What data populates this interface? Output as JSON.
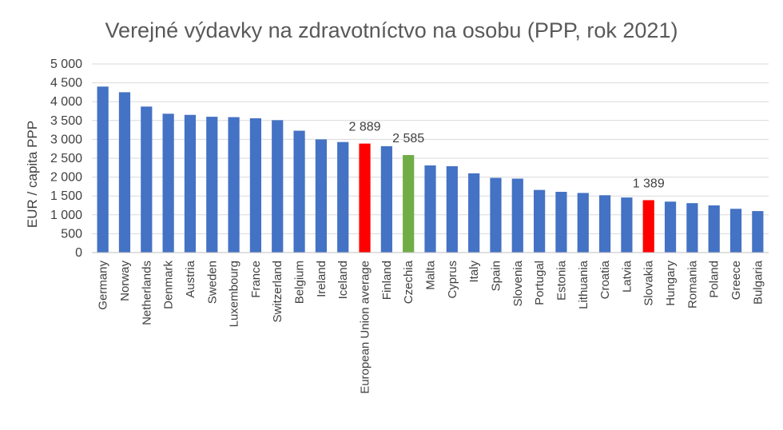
{
  "chart_data": {
    "type": "bar",
    "title": "Verejné výdavky na zdravotníctvo na osobu (PPP, rok 2021)",
    "xlabel": "",
    "ylabel": "EUR / capita PPP",
    "ylim": [
      0,
      5000
    ],
    "yticks": [
      0,
      500,
      1000,
      1500,
      2000,
      2500,
      3000,
      3500,
      4000,
      4500,
      5000
    ],
    "ytick_labels": [
      "0",
      "500",
      "1 000",
      "1 500",
      "2 000",
      "2 500",
      "3 000",
      "3 500",
      "4 000",
      "4 500",
      "5 000"
    ],
    "grid": true,
    "legend": "none",
    "categories": [
      "Germany",
      "Norway",
      "Netherlands",
      "Denmark",
      "Austria",
      "Sweden",
      "Luxembourg",
      "France",
      "Switzerland",
      "Belgium",
      "Ireland",
      "Iceland",
      "European Union average",
      "Finland",
      "Czechia",
      "Malta",
      "Cyprus",
      "Italy",
      "Spain",
      "Slovenia",
      "Portugal",
      "Estonia",
      "Lithuania",
      "Croatia",
      "Latvia",
      "Slovakia",
      "Hungary",
      "Romania",
      "Poland",
      "Greece",
      "Bulgaria"
    ],
    "values": [
      4400,
      4250,
      3870,
      3680,
      3650,
      3600,
      3590,
      3560,
      3510,
      3230,
      3000,
      2930,
      2889,
      2820,
      2585,
      2310,
      2290,
      2100,
      1980,
      1960,
      1660,
      1610,
      1580,
      1520,
      1460,
      1389,
      1350,
      1310,
      1250,
      1160,
      1100
    ],
    "colors": {
      "default": "#4472c4",
      "highlight_red": "#ff0000",
      "highlight_green": "#70ad47"
    },
    "bar_colors": [
      "default",
      "default",
      "default",
      "default",
      "default",
      "default",
      "default",
      "default",
      "default",
      "default",
      "default",
      "default",
      "highlight_red",
      "default",
      "highlight_green",
      "default",
      "default",
      "default",
      "default",
      "default",
      "default",
      "default",
      "default",
      "default",
      "default",
      "highlight_red",
      "default",
      "default",
      "default",
      "default",
      "default"
    ],
    "data_labels": [
      {
        "category": "European Union average",
        "text": "2 889"
      },
      {
        "category": "Czechia",
        "text": "2 585"
      },
      {
        "category": "Slovakia",
        "text": "1 389"
      }
    ]
  }
}
